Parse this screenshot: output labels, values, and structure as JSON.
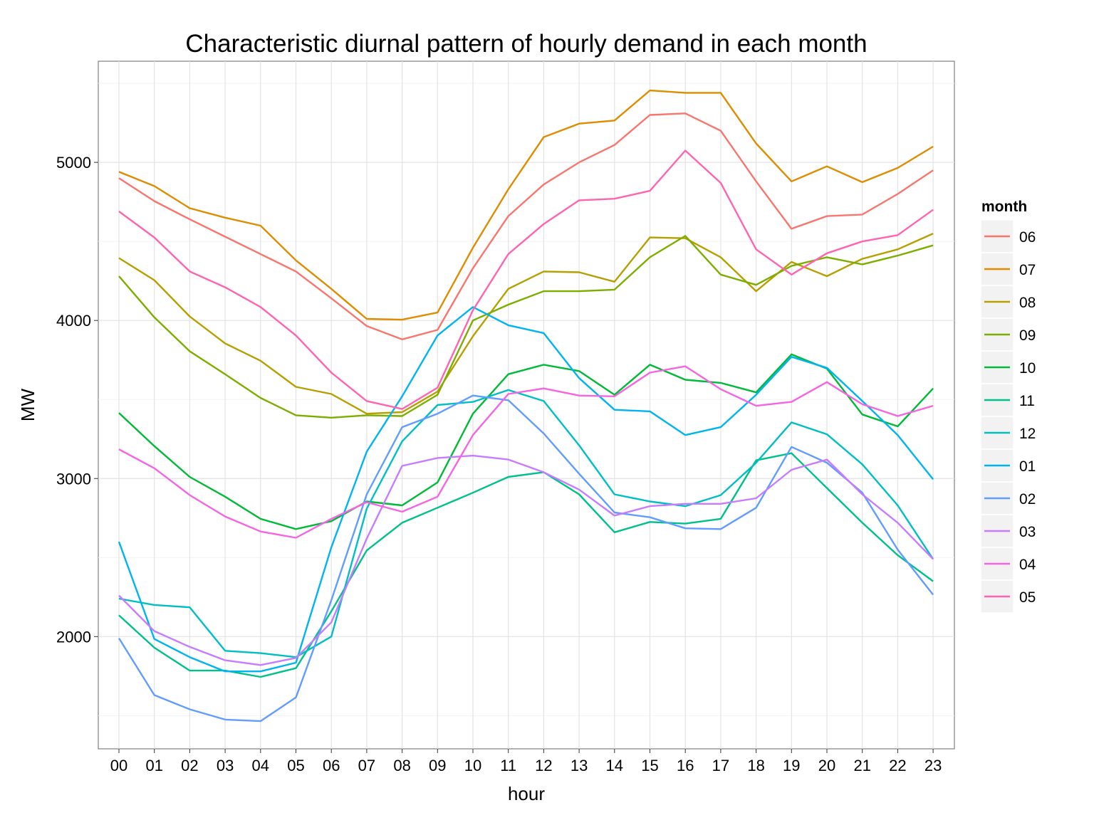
{
  "chart_data": {
    "type": "line",
    "title": "Characteristic diurnal pattern of hourly demand in each month",
    "xlabel": "hour",
    "ylabel": "MW",
    "x": [
      "00",
      "01",
      "02",
      "03",
      "04",
      "05",
      "06",
      "07",
      "08",
      "09",
      "10",
      "11",
      "12",
      "13",
      "14",
      "15",
      "16",
      "17",
      "18",
      "19",
      "20",
      "21",
      "22",
      "23"
    ],
    "ylim": [
      1290,
      5640
    ],
    "y_ticks": [
      2000,
      3000,
      4000,
      5000
    ],
    "grid": true,
    "legend": {
      "title": "month",
      "position": "right"
    },
    "series": [
      {
        "name": "06",
        "color": "#F8766D",
        "values": [
          4900,
          4755,
          4640,
          4530,
          4420,
          4310,
          4140,
          3965,
          3880,
          3940,
          4330,
          4660,
          4860,
          5000,
          5110,
          5300,
          5310,
          5200,
          4880,
          4580,
          4660,
          4670,
          4800,
          4950
        ]
      },
      {
        "name": "07",
        "color": "#DE8C00",
        "values": [
          4940,
          4850,
          4710,
          4650,
          4600,
          4380,
          4200,
          4010,
          4005,
          4050,
          4460,
          4830,
          5160,
          5245,
          5265,
          5455,
          5440,
          5440,
          5120,
          4880,
          4975,
          4875,
          4965,
          5100
        ]
      },
      {
        "name": "08",
        "color": "#B79F00",
        "values": [
          4395,
          4255,
          4025,
          3855,
          3745,
          3580,
          3535,
          3410,
          3420,
          3550,
          3900,
          4200,
          4310,
          4305,
          4245,
          4525,
          4520,
          4400,
          4185,
          4370,
          4280,
          4390,
          4450,
          4550
        ]
      },
      {
        "name": "09",
        "color": "#7CAE00",
        "values": [
          4280,
          4020,
          3805,
          3660,
          3510,
          3400,
          3385,
          3400,
          3395,
          3530,
          4000,
          4100,
          4185,
          4185,
          4195,
          4400,
          4535,
          4290,
          4225,
          4345,
          4400,
          4355,
          4410,
          4475
        ]
      },
      {
        "name": "10",
        "color": "#00BA38",
        "values": [
          3415,
          3205,
          3010,
          2885,
          2745,
          2680,
          2730,
          2855,
          2830,
          2975,
          3410,
          3660,
          3720,
          3680,
          3530,
          3720,
          3625,
          3605,
          3545,
          3785,
          3695,
          3405,
          3330,
          3570
        ]
      },
      {
        "name": "11",
        "color": "#00C08B",
        "values": [
          2135,
          1930,
          1785,
          1785,
          1745,
          1800,
          2160,
          2545,
          2720,
          2815,
          2910,
          3010,
          3040,
          2900,
          2660,
          2725,
          2715,
          2745,
          3115,
          3160,
          2940,
          2720,
          2515,
          2350
        ]
      },
      {
        "name": "12",
        "color": "#00BFC4",
        "values": [
          2240,
          2200,
          2185,
          1910,
          1895,
          1870,
          2000,
          2810,
          3235,
          3465,
          3485,
          3560,
          3490,
          3210,
          2900,
          2855,
          2825,
          2895,
          3100,
          3355,
          3280,
          3090,
          2830,
          2490
        ]
      },
      {
        "name": "01",
        "color": "#00B4F0",
        "values": [
          2600,
          1985,
          1870,
          1780,
          1780,
          1835,
          2565,
          3170,
          3520,
          3905,
          4085,
          3970,
          3920,
          3635,
          3435,
          3425,
          3275,
          3325,
          3530,
          3770,
          3700,
          3490,
          3275,
          2995
        ]
      },
      {
        "name": "02",
        "color": "#619CFF",
        "values": [
          1990,
          1630,
          1540,
          1475,
          1465,
          1615,
          2230,
          2900,
          3325,
          3410,
          3525,
          3495,
          3285,
          3030,
          2785,
          2755,
          2685,
          2680,
          2815,
          3200,
          3100,
          2910,
          2550,
          2265
        ]
      },
      {
        "name": "03",
        "color": "#C77CFF",
        "values": [
          2260,
          2035,
          1935,
          1850,
          1820,
          1865,
          2090,
          2620,
          3080,
          3130,
          3145,
          3120,
          3040,
          2930,
          2765,
          2825,
          2840,
          2840,
          2875,
          3055,
          3120,
          2900,
          2720,
          2490
        ]
      },
      {
        "name": "04",
        "color": "#F564E3",
        "values": [
          3185,
          3065,
          2895,
          2760,
          2665,
          2625,
          2745,
          2850,
          2790,
          2885,
          3275,
          3535,
          3570,
          3525,
          3520,
          3670,
          3710,
          3565,
          3460,
          3485,
          3610,
          3470,
          3395,
          3460
        ]
      },
      {
        "name": "05",
        "color": "#FF64B0",
        "values": [
          4690,
          4525,
          4310,
          4210,
          4085,
          3905,
          3670,
          3490,
          3440,
          3575,
          4065,
          4420,
          4610,
          4760,
          4770,
          4820,
          5075,
          4870,
          4450,
          4290,
          4425,
          4500,
          4540,
          4700
        ]
      }
    ]
  }
}
